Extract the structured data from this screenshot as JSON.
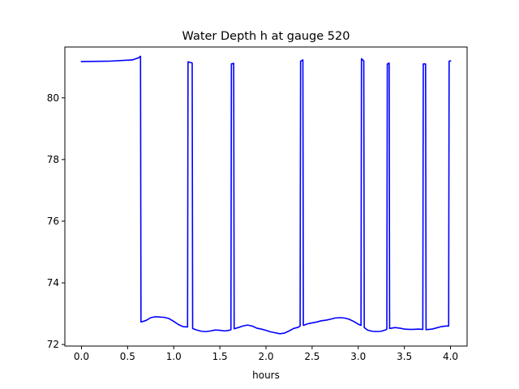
{
  "chart_data": {
    "type": "line",
    "title": "Water Depth h at gauge 520",
    "xlabel": "hours",
    "ylabel": "",
    "xlim": [
      -0.18,
      4.18
    ],
    "ylim": [
      71.95,
      81.65
    ],
    "xticks": [
      0.0,
      0.5,
      1.0,
      1.5,
      2.0,
      2.5,
      3.0,
      3.5,
      4.0
    ],
    "xtick_labels": [
      "0.0",
      "0.5",
      "1.0",
      "1.5",
      "2.0",
      "2.5",
      "3.0",
      "3.5",
      "4.0"
    ],
    "yticks": [
      72,
      74,
      76,
      78,
      80
    ],
    "ytick_labels": [
      "72",
      "74",
      "76",
      "78",
      "80"
    ],
    "grid": false,
    "series": [
      {
        "color": "#0000ff",
        "x": [
          0.0,
          0.3,
          0.55,
          0.62,
          0.64,
          0.645,
          0.7,
          0.75,
          0.8,
          0.9,
          0.95,
          1.0,
          1.05,
          1.1,
          1.15,
          1.155,
          1.2,
          1.205,
          1.25,
          1.3,
          1.35,
          1.4,
          1.45,
          1.5,
          1.55,
          1.6,
          1.62,
          1.625,
          1.65,
          1.655,
          1.7,
          1.75,
          1.8,
          1.85,
          1.9,
          1.95,
          2.0,
          2.05,
          2.1,
          2.15,
          2.2,
          2.25,
          2.3,
          2.35,
          2.37,
          2.375,
          2.4,
          2.405,
          2.45,
          2.5,
          2.55,
          2.6,
          2.65,
          2.7,
          2.75,
          2.8,
          2.85,
          2.9,
          2.95,
          3.0,
          3.03,
          3.035,
          3.06,
          3.065,
          3.1,
          3.15,
          3.2,
          3.25,
          3.3,
          3.31,
          3.315,
          3.335,
          3.34,
          3.4,
          3.45,
          3.5,
          3.55,
          3.6,
          3.65,
          3.7,
          3.705,
          3.73,
          3.735,
          3.8,
          3.85,
          3.9,
          3.95,
          3.98,
          3.985,
          4.0
        ],
        "y": [
          81.18,
          81.19,
          81.23,
          81.3,
          81.35,
          72.73,
          72.78,
          72.87,
          72.9,
          72.88,
          72.84,
          72.75,
          72.65,
          72.58,
          72.57,
          81.17,
          81.13,
          72.52,
          72.47,
          72.43,
          72.42,
          72.44,
          72.47,
          72.46,
          72.44,
          72.46,
          72.48,
          81.1,
          81.12,
          72.51,
          72.55,
          72.6,
          72.63,
          72.6,
          72.53,
          72.5,
          72.46,
          72.41,
          72.38,
          72.35,
          72.37,
          72.44,
          72.52,
          72.56,
          72.6,
          81.19,
          81.23,
          72.62,
          72.67,
          72.7,
          72.73,
          72.77,
          72.79,
          72.82,
          72.86,
          72.87,
          72.86,
          72.82,
          72.75,
          72.66,
          72.62,
          81.27,
          81.2,
          72.55,
          72.47,
          72.43,
          72.42,
          72.43,
          72.48,
          72.5,
          81.1,
          81.13,
          72.52,
          72.55,
          72.53,
          72.5,
          72.49,
          72.49,
          72.5,
          72.49,
          81.1,
          81.1,
          72.48,
          72.5,
          72.54,
          72.58,
          72.6,
          72.6,
          81.19,
          81.2
        ]
      }
    ]
  }
}
